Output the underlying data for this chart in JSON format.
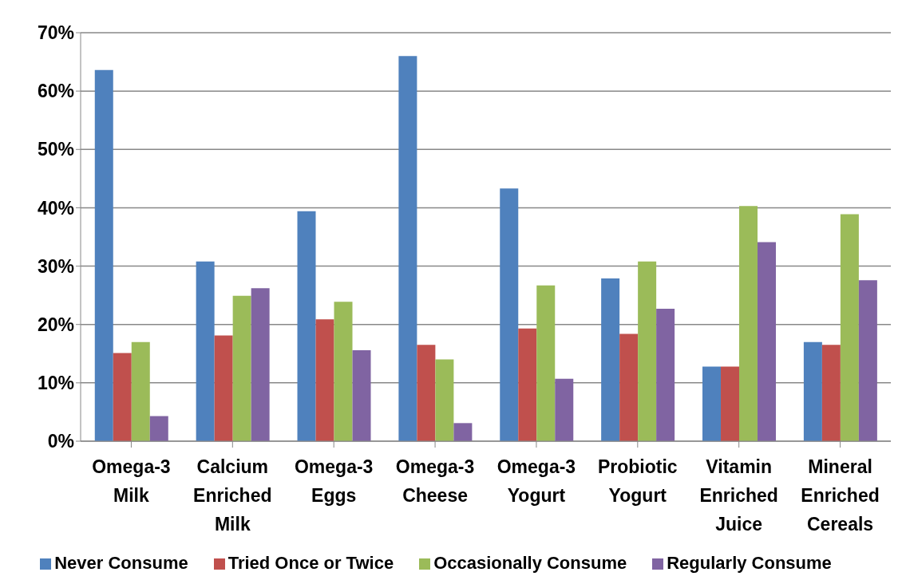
{
  "chart_data": {
    "type": "bar",
    "categories": [
      "Omega-3 Milk",
      "Calcium Enriched Milk",
      "Omega-3 Eggs",
      "Omega-3 Cheese",
      "Omega-3 Yogurt",
      "Probiotic Yogurt",
      "Vitamin Enriched Juice",
      "Mineral Enriched Cereals"
    ],
    "series": [
      {
        "name": "Never Consume",
        "color": "#4f81bd",
        "values": [
          63.6,
          30.8,
          39.4,
          66.0,
          43.3,
          27.9,
          12.8,
          17.0
        ]
      },
      {
        "name": "Tried Once or Twice",
        "color": "#c0504d",
        "values": [
          15.1,
          18.1,
          20.9,
          16.5,
          19.3,
          18.4,
          12.8,
          16.5
        ]
      },
      {
        "name": "Occasionally Consume",
        "color": "#9bbb59",
        "values": [
          17.0,
          24.9,
          23.9,
          14.0,
          26.7,
          30.8,
          40.3,
          38.9
        ]
      },
      {
        "name": "Regularly Consume",
        "color": "#8064a2",
        "values": [
          4.3,
          26.2,
          15.6,
          3.1,
          10.7,
          22.7,
          34.1,
          27.6
        ]
      }
    ],
    "ylim": [
      0,
      70
    ],
    "yticks": [
      {
        "value": 0,
        "label": "0%"
      },
      {
        "value": 10,
        "label": "10%"
      },
      {
        "value": 20,
        "label": "20%"
      },
      {
        "value": 30,
        "label": "30%"
      },
      {
        "value": 40,
        "label": "40%"
      },
      {
        "value": 50,
        "label": "50%"
      },
      {
        "value": 60,
        "label": "60%"
      },
      {
        "value": 70,
        "label": "70%"
      }
    ],
    "grid": "y",
    "legend": "bottom"
  }
}
